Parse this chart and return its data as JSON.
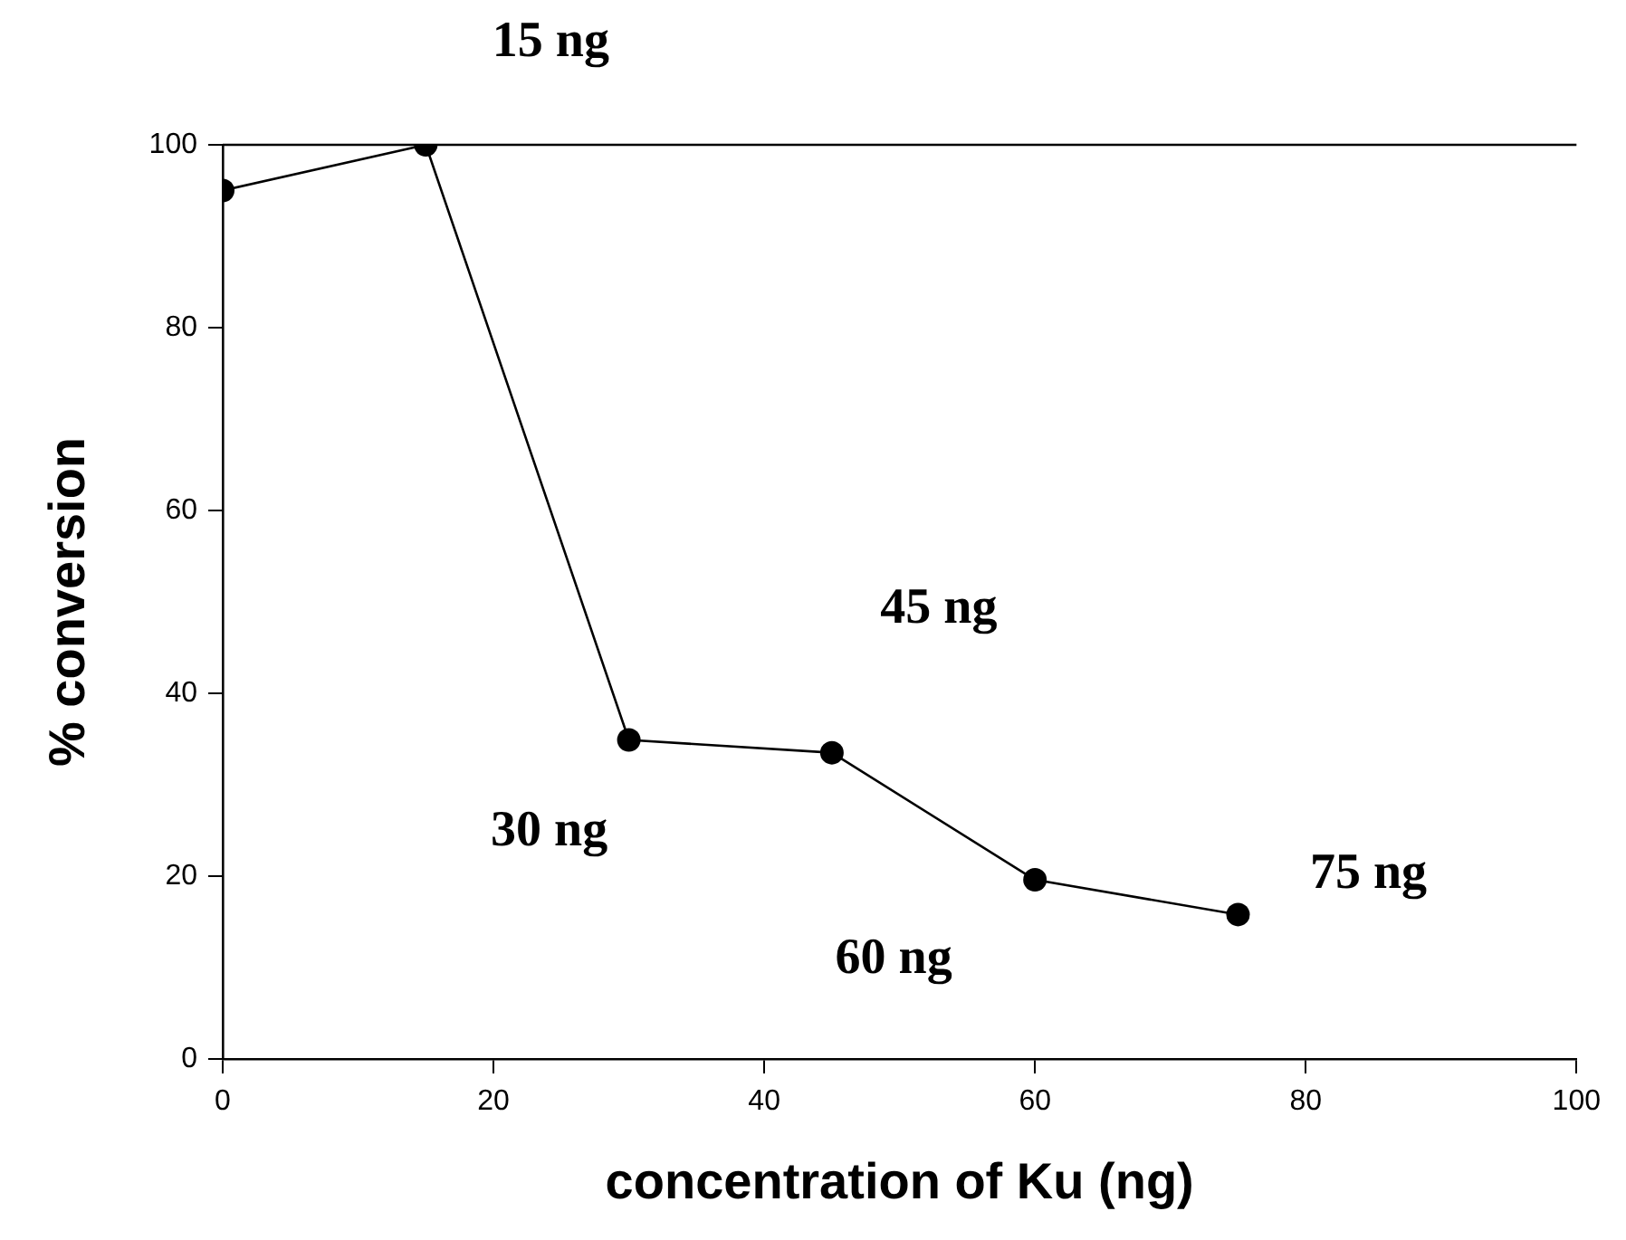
{
  "chart_data": {
    "type": "line",
    "xlabel": "concentration of Ku (ng)",
    "ylabel": "% conversion",
    "x": [
      0,
      15,
      30,
      45,
      60,
      75
    ],
    "series": [
      {
        "color": "#000000",
        "values": [
          95,
          100,
          34.9,
          33.5,
          19.6,
          15.8
        ]
      }
    ],
    "xlim": [
      0,
      100
    ],
    "xticks": [
      0,
      20,
      40,
      60,
      80,
      100
    ],
    "ylim": [
      0,
      100
    ],
    "yticks": [
      0,
      20,
      40,
      60,
      80,
      100
    ],
    "grid": false,
    "legend": false,
    "marker": "circle",
    "line_style": "solid",
    "annotations": [
      {
        "text": "15 ng",
        "x": 15,
        "y": 100
      },
      {
        "text": "30 ng",
        "x": 30,
        "y": 34.9
      },
      {
        "text": "45 ng",
        "x": 45,
        "y": 33.5
      },
      {
        "text": "60 ng",
        "x": 60,
        "y": 19.6
      },
      {
        "text": "75 ng",
        "x": 75,
        "y": 15.8
      }
    ]
  }
}
